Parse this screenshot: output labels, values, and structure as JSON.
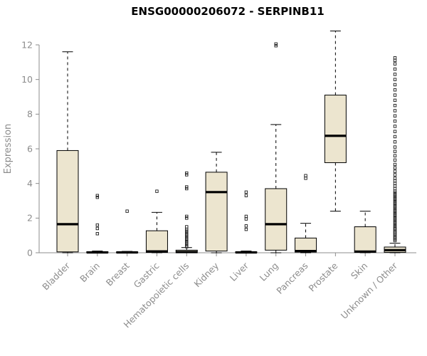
{
  "chart_data": {
    "type": "boxplot",
    "title": "ENSG00000206072 - SERPINB11",
    "xlabel": "",
    "ylabel": "Expression",
    "ylim": [
      0,
      12
    ],
    "yticks": [
      0,
      2,
      4,
      6,
      8,
      10,
      12
    ],
    "grid": false,
    "legend": "none",
    "categories": [
      "Bladder",
      "Brain",
      "Breast",
      "Gastric",
      "Hematopoietic cells",
      "Kidney",
      "Liver",
      "Lung",
      "Pancreas",
      "Prostate",
      "Skin",
      "Unknown / Other"
    ],
    "series": [
      {
        "name": "Bladder",
        "low": 0,
        "q1": 0.05,
        "median": 1.65,
        "q3": 5.9,
        "high": 11.6,
        "outliers": []
      },
      {
        "name": "Brain",
        "low": 0,
        "q1": 0.0,
        "median": 0.02,
        "q3": 0.06,
        "high": 0.1,
        "outliers": [
          1.1,
          1.4,
          1.6,
          3.2,
          3.3
        ]
      },
      {
        "name": "Breast",
        "low": 0,
        "q1": 0.0,
        "median": 0.02,
        "q3": 0.05,
        "high": 0.08,
        "outliers": [
          2.4
        ]
      },
      {
        "name": "Gastric",
        "low": 0,
        "q1": 0.02,
        "median": 0.08,
        "q3": 1.27,
        "high": 2.33,
        "outliers": [
          3.55
        ]
      },
      {
        "name": "Hematopoietic cells",
        "low": 0,
        "q1": 0.0,
        "median": 0.04,
        "q3": 0.15,
        "high": 0.3,
        "outliers": [
          0.35,
          0.45,
          0.55,
          0.65,
          0.75,
          0.85,
          0.95,
          1.05,
          1.15,
          1.25,
          1.35,
          1.5,
          2.0,
          2.1,
          3.7,
          3.8,
          4.5,
          4.6
        ]
      },
      {
        "name": "Kidney",
        "low": 0,
        "q1": 0.1,
        "median": 3.5,
        "q3": 4.65,
        "high": 5.8,
        "outliers": []
      },
      {
        "name": "Liver",
        "low": 0,
        "q1": 0.0,
        "median": 0.02,
        "q3": 0.05,
        "high": 0.1,
        "outliers": [
          1.35,
          1.55,
          1.95,
          2.1,
          3.3,
          3.5
        ]
      },
      {
        "name": "Lung",
        "low": 0,
        "q1": 0.15,
        "median": 1.65,
        "q3": 3.7,
        "high": 7.4,
        "outliers": [
          11.95,
          12.05
        ]
      },
      {
        "name": "Pancreas",
        "low": 0,
        "q1": 0.04,
        "median": 0.1,
        "q3": 0.85,
        "high": 1.7,
        "outliers": [
          4.3,
          4.45
        ]
      },
      {
        "name": "Prostate",
        "low": 2.4,
        "q1": 5.2,
        "median": 6.75,
        "q3": 9.1,
        "high": 12.8,
        "outliers": []
      },
      {
        "name": "Skin",
        "low": 0,
        "q1": 0.02,
        "median": 0.07,
        "q3": 1.5,
        "high": 2.4,
        "outliers": []
      },
      {
        "name": "Unknown / Other",
        "low": 0,
        "q1": 0.02,
        "median": 0.15,
        "q3": 0.33,
        "high": 0.55,
        "outliers": [
          0.7,
          0.78,
          0.85,
          0.92,
          1.0,
          1.08,
          1.15,
          1.22,
          1.3,
          1.38,
          1.45,
          1.55,
          1.65,
          1.75,
          1.85,
          1.95,
          2.05,
          2.15,
          2.25,
          2.35,
          2.45,
          2.55,
          2.65,
          2.75,
          2.85,
          2.95,
          3.05,
          3.15,
          3.25,
          3.35,
          3.45,
          3.55,
          3.7,
          3.85,
          4.0,
          4.15,
          4.3,
          4.5,
          4.7,
          4.9,
          5.1,
          5.35,
          5.6,
          5.85,
          6.1,
          6.4,
          6.7,
          7.0,
          7.3,
          7.6,
          7.9,
          8.2,
          8.5,
          8.8,
          9.1,
          9.4,
          9.7,
          10.0,
          10.3,
          10.6,
          10.9,
          11.1,
          11.25
        ]
      }
    ],
    "colors": {
      "box_fill": "#ece5cf",
      "box_border": "#000000",
      "median": "#000000",
      "whisker": "#000000",
      "outlier": "#1a1a1a",
      "axis": "#8c8c8c",
      "tick_label": "#8c8c8c",
      "title": "#000000",
      "background": "#ffffff"
    }
  }
}
